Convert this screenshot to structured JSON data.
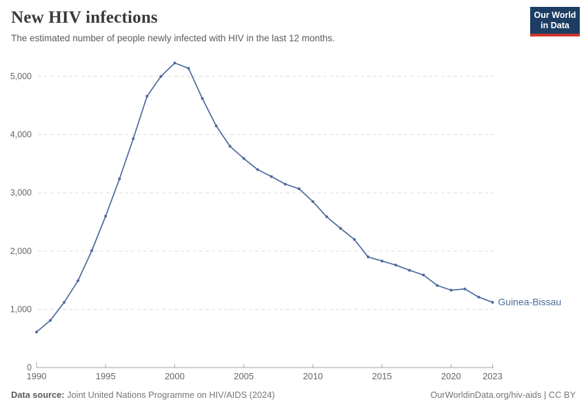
{
  "header": {
    "title": "New HIV infections",
    "subtitle": "The estimated number of people newly infected with HIV in the last 12 months."
  },
  "logo": {
    "line1": "Our World",
    "line2": "in Data",
    "bg_color": "#1d3d63",
    "stripe_color": "#d0342c"
  },
  "chart_data": {
    "type": "line",
    "title": "New HIV infections",
    "xlabel": "",
    "ylabel": "",
    "xlim": [
      1990,
      2023
    ],
    "ylim": [
      0,
      5000
    ],
    "grid": "horizontal-dashed",
    "legend": "end-of-line-label",
    "x": [
      1990,
      1991,
      1992,
      1993,
      1994,
      1995,
      1996,
      1997,
      1998,
      1999,
      2000,
      2001,
      2002,
      2003,
      2004,
      2005,
      2006,
      2007,
      2008,
      2009,
      2010,
      2011,
      2012,
      2013,
      2014,
      2015,
      2016,
      2017,
      2018,
      2019,
      2020,
      2021,
      2022,
      2023
    ],
    "series": [
      {
        "name": "Guinea-Bissau",
        "color": "#4c6a9c",
        "values": [
          610,
          810,
          1120,
          1490,
          2010,
          2600,
          3240,
          3930,
          4660,
          5000,
          5230,
          5140,
          4620,
          4150,
          3800,
          3590,
          3400,
          3280,
          3150,
          3070,
          2850,
          2590,
          2390,
          2200,
          1900,
          1830,
          1760,
          1670,
          1590,
          1410,
          1330,
          1350,
          1210,
          1120
        ]
      }
    ],
    "x_ticks": [
      1990,
      1995,
      2000,
      2005,
      2010,
      2015,
      2020,
      2023
    ],
    "x_tick_labels": [
      "1990",
      "1995",
      "2000",
      "2005",
      "2010",
      "2015",
      "2020",
      "2023"
    ],
    "y_ticks": [
      0,
      1000,
      2000,
      3000,
      4000,
      5000
    ],
    "y_tick_labels": [
      "0",
      "1,000",
      "2,000",
      "3,000",
      "4,000",
      "5,000"
    ],
    "axis_color": "#a3a3a3",
    "grid_color": "#dddddd",
    "tick_label_color": "#666666"
  },
  "footer": {
    "source_label": "Data source:",
    "source_text": " Joint United Nations Programme on HIV/AIDS (2024)",
    "right_text": "OurWorldinData.org/hiv-aids | CC BY"
  }
}
